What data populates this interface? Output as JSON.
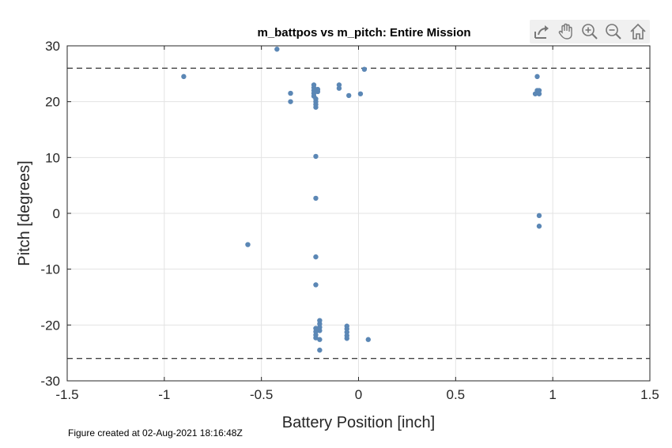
{
  "chart_data": {
    "type": "scatter",
    "title": "m_battpos vs m_pitch: Entire Mission",
    "xlabel": "Battery Position [inch]",
    "ylabel": "Pitch [degrees]",
    "xlim": [
      -1.5,
      1.5
    ],
    "ylim": [
      -30,
      30
    ],
    "x_ticks": [
      -1.5,
      -1,
      -0.5,
      0,
      0.5,
      1,
      1.5
    ],
    "x_tick_labels": [
      "-1.5",
      "-1",
      "-0.5",
      "0",
      "0.5",
      "1",
      "1.5"
    ],
    "y_ticks": [
      -30,
      -20,
      -10,
      0,
      10,
      20,
      30
    ],
    "y_tick_labels": [
      "-30",
      "-20",
      "-10",
      "0",
      "10",
      "20",
      "30"
    ],
    "grid": true,
    "reference_lines_y": [
      26,
      -26
    ],
    "marker_color": "#5b87b5",
    "points": [
      {
        "x": -0.42,
        "y": 29.4
      },
      {
        "x": -0.9,
        "y": 24.5
      },
      {
        "x": 0.03,
        "y": 25.8
      },
      {
        "x": -0.35,
        "y": 21.5
      },
      {
        "x": -0.35,
        "y": 20.0
      },
      {
        "x": -0.23,
        "y": 23.0
      },
      {
        "x": -0.23,
        "y": 22.5
      },
      {
        "x": -0.23,
        "y": 22.0
      },
      {
        "x": -0.23,
        "y": 21.5
      },
      {
        "x": -0.23,
        "y": 21.0
      },
      {
        "x": -0.22,
        "y": 20.5
      },
      {
        "x": -0.22,
        "y": 20.0
      },
      {
        "x": -0.22,
        "y": 19.5
      },
      {
        "x": -0.22,
        "y": 19.0
      },
      {
        "x": -0.21,
        "y": 22.2
      },
      {
        "x": -0.21,
        "y": 21.8
      },
      {
        "x": -0.1,
        "y": 23.0
      },
      {
        "x": -0.1,
        "y": 22.4
      },
      {
        "x": -0.05,
        "y": 21.1
      },
      {
        "x": 0.01,
        "y": 21.4
      },
      {
        "x": 0.92,
        "y": 24.5
      },
      {
        "x": 0.92,
        "y": 22.0
      },
      {
        "x": 0.93,
        "y": 22.0
      },
      {
        "x": 0.91,
        "y": 21.4
      },
      {
        "x": 0.93,
        "y": 21.4
      },
      {
        "x": -0.22,
        "y": 10.2
      },
      {
        "x": -0.22,
        "y": 2.7
      },
      {
        "x": 0.93,
        "y": -0.4
      },
      {
        "x": 0.93,
        "y": -2.3
      },
      {
        "x": -0.57,
        "y": -5.6
      },
      {
        "x": -0.22,
        "y": -7.8
      },
      {
        "x": -0.22,
        "y": -12.8
      },
      {
        "x": -0.2,
        "y": -19.2
      },
      {
        "x": -0.2,
        "y": -19.8
      },
      {
        "x": -0.2,
        "y": -20.4
      },
      {
        "x": -0.2,
        "y": -21.0
      },
      {
        "x": -0.22,
        "y": -20.6
      },
      {
        "x": -0.22,
        "y": -21.2
      },
      {
        "x": -0.22,
        "y": -21.8
      },
      {
        "x": -0.22,
        "y": -22.3
      },
      {
        "x": -0.2,
        "y": -22.6
      },
      {
        "x": -0.2,
        "y": -24.5
      },
      {
        "x": -0.06,
        "y": -20.2
      },
      {
        "x": -0.06,
        "y": -20.7
      },
      {
        "x": -0.06,
        "y": -21.3
      },
      {
        "x": -0.06,
        "y": -21.9
      },
      {
        "x": -0.06,
        "y": -22.4
      },
      {
        "x": 0.05,
        "y": -22.6
      }
    ]
  },
  "footer": {
    "text": "Figure created at 02-Aug-2021 18:16:48Z"
  },
  "toolbar": {
    "icons": [
      "export-icon",
      "pan-hand-icon",
      "zoom-in-icon",
      "zoom-out-icon",
      "home-icon"
    ]
  }
}
